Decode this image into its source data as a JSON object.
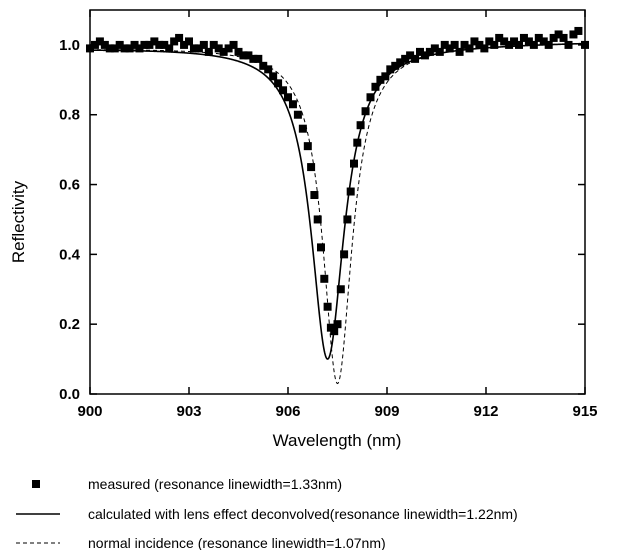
{
  "chart_data": {
    "type": "scatter",
    "xlabel": "Wavelength (nm)",
    "ylabel": "Reflectivity",
    "xlim": [
      900,
      915
    ],
    "ylim": [
      0.0,
      1.1
    ],
    "x_ticks": [
      "900",
      "903",
      "906",
      "909",
      "912",
      "915"
    ],
    "y_ticks": [
      "0.0",
      "0.2",
      "0.4",
      "0.6",
      "0.8",
      "1.0"
    ],
    "grid": false,
    "legend_position": "bottom",
    "series": [
      {
        "name": "measured (resonance linewidth=1.33nm)",
        "style": "square-markers",
        "color": "#000000",
        "points": [
          [
            900.0,
            0.99
          ],
          [
            900.15,
            1.0
          ],
          [
            900.3,
            1.01
          ],
          [
            900.45,
            1.0
          ],
          [
            900.6,
            0.99
          ],
          [
            900.75,
            0.99
          ],
          [
            900.9,
            1.0
          ],
          [
            901.05,
            0.99
          ],
          [
            901.2,
            0.99
          ],
          [
            901.35,
            1.0
          ],
          [
            901.5,
            0.99
          ],
          [
            901.65,
            1.0
          ],
          [
            901.8,
            1.0
          ],
          [
            901.95,
            1.01
          ],
          [
            902.1,
            1.0
          ],
          [
            902.25,
            1.0
          ],
          [
            902.4,
            0.99
          ],
          [
            902.55,
            1.01
          ],
          [
            902.7,
            1.02
          ],
          [
            902.85,
            1.0
          ],
          [
            903.0,
            1.01
          ],
          [
            903.15,
            0.99
          ],
          [
            903.3,
            0.99
          ],
          [
            903.45,
            1.0
          ],
          [
            903.6,
            0.98
          ],
          [
            903.75,
            1.0
          ],
          [
            903.9,
            0.99
          ],
          [
            904.05,
            0.98
          ],
          [
            904.2,
            0.99
          ],
          [
            904.35,
            1.0
          ],
          [
            904.5,
            0.98
          ],
          [
            904.65,
            0.97
          ],
          [
            904.8,
            0.97
          ],
          [
            904.95,
            0.96
          ],
          [
            905.1,
            0.96
          ],
          [
            905.25,
            0.94
          ],
          [
            905.4,
            0.93
          ],
          [
            905.55,
            0.91
          ],
          [
            905.7,
            0.89
          ],
          [
            905.85,
            0.87
          ],
          [
            906.0,
            0.85
          ],
          [
            906.15,
            0.83
          ],
          [
            906.3,
            0.8
          ],
          [
            906.45,
            0.76
          ],
          [
            906.6,
            0.71
          ],
          [
            906.7,
            0.65
          ],
          [
            906.8,
            0.57
          ],
          [
            906.9,
            0.5
          ],
          [
            907.0,
            0.42
          ],
          [
            907.1,
            0.33
          ],
          [
            907.2,
            0.25
          ],
          [
            907.3,
            0.19
          ],
          [
            907.4,
            0.18
          ],
          [
            907.5,
            0.2
          ],
          [
            907.6,
            0.3
          ],
          [
            907.7,
            0.4
          ],
          [
            907.8,
            0.5
          ],
          [
            907.9,
            0.58
          ],
          [
            908.0,
            0.66
          ],
          [
            908.1,
            0.72
          ],
          [
            908.2,
            0.77
          ],
          [
            908.35,
            0.81
          ],
          [
            908.5,
            0.85
          ],
          [
            908.65,
            0.88
          ],
          [
            908.8,
            0.9
          ],
          [
            908.95,
            0.91
          ],
          [
            909.1,
            0.93
          ],
          [
            909.25,
            0.94
          ],
          [
            909.4,
            0.95
          ],
          [
            909.55,
            0.96
          ],
          [
            909.7,
            0.97
          ],
          [
            909.85,
            0.96
          ],
          [
            910.0,
            0.98
          ],
          [
            910.15,
            0.97
          ],
          [
            910.3,
            0.98
          ],
          [
            910.45,
            0.99
          ],
          [
            910.6,
            0.98
          ],
          [
            910.75,
            1.0
          ],
          [
            910.9,
            0.99
          ],
          [
            911.05,
            1.0
          ],
          [
            911.2,
            0.98
          ],
          [
            911.35,
            1.0
          ],
          [
            911.5,
            0.99
          ],
          [
            911.65,
            1.01
          ],
          [
            911.8,
            1.0
          ],
          [
            911.95,
            0.99
          ],
          [
            912.1,
            1.01
          ],
          [
            912.25,
            1.0
          ],
          [
            912.4,
            1.02
          ],
          [
            912.55,
            1.01
          ],
          [
            912.7,
            1.0
          ],
          [
            912.85,
            1.01
          ],
          [
            913.0,
            1.0
          ],
          [
            913.15,
            1.02
          ],
          [
            913.3,
            1.01
          ],
          [
            913.45,
            1.0
          ],
          [
            913.6,
            1.02
          ],
          [
            913.75,
            1.01
          ],
          [
            913.9,
            1.0
          ],
          [
            914.05,
            1.02
          ],
          [
            914.2,
            1.03
          ],
          [
            914.35,
            1.02
          ],
          [
            914.5,
            1.0
          ],
          [
            914.65,
            1.03
          ],
          [
            914.8,
            1.04
          ],
          [
            915.0,
            1.0
          ]
        ]
      },
      {
        "name": "calculated with lens effect deconvolved(resonance linewidth=1.22nm)",
        "style": "solid-line",
        "color": "#000000",
        "model": {
          "center": 907.2,
          "fwhm": 1.22,
          "min": 0.1,
          "baseline": 1.0,
          "slope": 0.0012
        }
      },
      {
        "name": "normal incidence (resonance linewidth=1.07nm)",
        "style": "dashed-line",
        "color": "#000000",
        "model": {
          "center": 907.5,
          "fwhm": 1.07,
          "min": 0.03,
          "baseline": 1.0,
          "slope": 0.0012
        }
      }
    ]
  }
}
